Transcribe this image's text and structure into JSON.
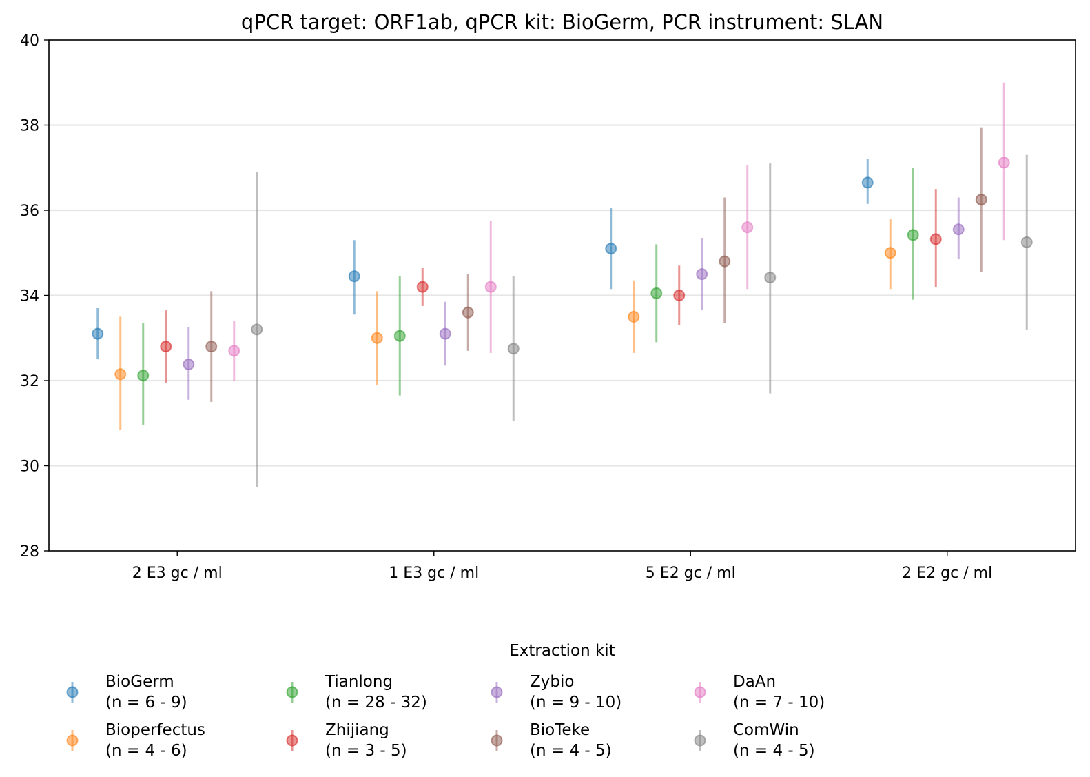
{
  "chart_data": {
    "type": "scatter",
    "title": "qPCR target: ORF1ab, qPCR kit: BioGerm, PCR instrument: SLAN",
    "xlabel": "",
    "ylabel": "",
    "ylim": [
      28,
      40
    ],
    "yticks": [
      28,
      30,
      32,
      34,
      36,
      38,
      40
    ],
    "grid": "horizontal",
    "categories": [
      "2 E3 gc / ml",
      "1 E3 gc / ml",
      "5 E2 gc / ml",
      "2 E2 gc / ml"
    ],
    "legend": {
      "title": "Extraction kit",
      "placement": "bottom"
    },
    "series": [
      {
        "name": "BioGerm",
        "sub": "(n = 6 - 9)",
        "color": "#1f77b4",
        "values": [
          33.1,
          34.45,
          35.1,
          36.65
        ],
        "lower": [
          32.5,
          33.55,
          34.15,
          36.15
        ],
        "upper": [
          33.7,
          35.3,
          36.05,
          37.2
        ]
      },
      {
        "name": "Bioperfectus",
        "sub": "(n = 4 - 6)",
        "color": "#ff7f0e",
        "values": [
          32.15,
          33.0,
          33.5,
          35.0
        ],
        "lower": [
          30.85,
          31.9,
          32.65,
          34.15
        ],
        "upper": [
          33.5,
          34.1,
          34.35,
          35.8
        ]
      },
      {
        "name": "Tianlong",
        "sub": "(n = 28 - 32)",
        "color": "#2ca02c",
        "values": [
          32.12,
          33.05,
          34.05,
          35.42
        ],
        "lower": [
          30.95,
          31.65,
          32.9,
          33.9
        ],
        "upper": [
          33.35,
          34.45,
          35.2,
          37.0
        ]
      },
      {
        "name": "Zhijiang",
        "sub": "(n = 3 - 5)",
        "color": "#d62728",
        "values": [
          32.8,
          34.2,
          34.0,
          35.32
        ],
        "lower": [
          31.95,
          33.75,
          33.3,
          34.2
        ],
        "upper": [
          33.65,
          34.65,
          34.7,
          36.5
        ]
      },
      {
        "name": "Zybio",
        "sub": "(n = 9 - 10)",
        "color": "#9467bd",
        "values": [
          32.38,
          33.1,
          34.5,
          35.55
        ],
        "lower": [
          31.55,
          32.35,
          33.65,
          34.85
        ],
        "upper": [
          33.25,
          33.85,
          35.35,
          36.3
        ]
      },
      {
        "name": "BioTeke",
        "sub": "(n = 4 - 5)",
        "color": "#8c564b",
        "values": [
          32.8,
          33.6,
          34.8,
          36.25
        ],
        "lower": [
          31.5,
          32.7,
          33.35,
          34.55
        ],
        "upper": [
          34.1,
          34.5,
          36.3,
          37.95
        ]
      },
      {
        "name": "DaAn",
        "sub": "(n = 7 - 10)",
        "color": "#e377c2",
        "values": [
          32.7,
          34.2,
          35.6,
          37.12
        ],
        "lower": [
          32.0,
          32.65,
          34.15,
          35.3
        ],
        "upper": [
          33.4,
          35.75,
          37.05,
          39.0
        ]
      },
      {
        "name": "ComWin",
        "sub": "(n = 4 - 5)",
        "color": "#7f7f7f",
        "values": [
          33.2,
          32.75,
          34.42,
          35.25
        ],
        "lower": [
          29.5,
          31.05,
          31.7,
          33.2
        ],
        "upper": [
          36.9,
          34.45,
          37.1,
          37.3
        ]
      }
    ]
  }
}
